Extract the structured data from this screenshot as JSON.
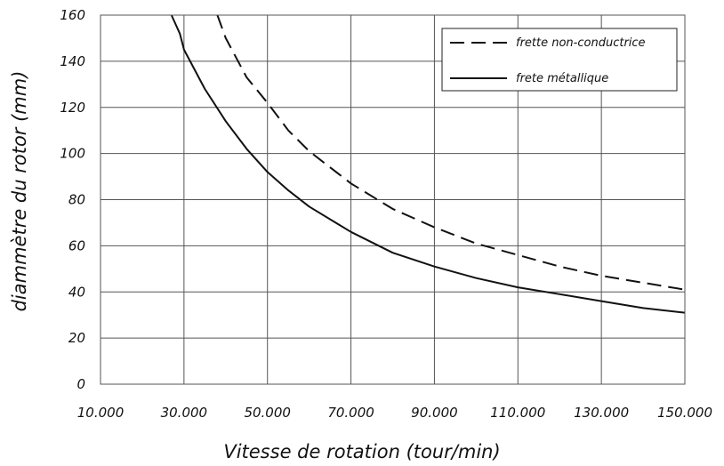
{
  "chart_data": {
    "type": "line",
    "xlabel": "Vitesse de rotation (tour/min)",
    "ylabel": "diammètre du rotor (mm)",
    "xlim": [
      10000,
      150000
    ],
    "ylim": [
      0,
      160
    ],
    "x_ticks": [
      10000,
      30000,
      50000,
      70000,
      90000,
      110000,
      130000,
      150000
    ],
    "x_tick_labels": [
      "10.000",
      "30.000",
      "50.000",
      "70.000",
      "90.000",
      "110.000",
      "130.000",
      "150.000"
    ],
    "y_ticks": [
      0,
      20,
      40,
      60,
      80,
      100,
      120,
      140,
      160
    ],
    "y_tick_labels": [
      "0",
      "20",
      "40",
      "60",
      "80",
      "100",
      "120",
      "140",
      "160"
    ],
    "grid": true,
    "legend_position": "top-right",
    "series": [
      {
        "name": "frette non-conductrice",
        "style": "dashed",
        "color": "#111111",
        "x": [
          38000,
          40000,
          45000,
          50000,
          55000,
          60000,
          70000,
          80000,
          90000,
          100000,
          110000,
          120000,
          130000,
          140000,
          150000
        ],
        "y": [
          160,
          150,
          133,
          122,
          110,
          101,
          87,
          76,
          68,
          61,
          56,
          51,
          47,
          44,
          41
        ]
      },
      {
        "name": "frete métallique",
        "style": "solid",
        "color": "#111111",
        "x": [
          27000,
          29000,
          30000,
          35000,
          40000,
          45000,
          50000,
          55000,
          60000,
          70000,
          80000,
          90000,
          100000,
          110000,
          120000,
          130000,
          140000,
          150000
        ],
        "y": [
          160,
          152,
          145,
          128,
          114,
          102,
          92,
          84,
          77,
          66,
          57,
          51,
          46,
          42,
          39,
          36,
          33,
          31
        ]
      }
    ]
  }
}
